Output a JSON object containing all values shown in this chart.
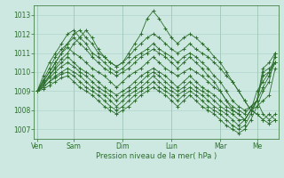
{
  "background_color": "#cce8e0",
  "grid_color": "#aacfc8",
  "line_color": "#2d6e2d",
  "xlabel": "Pression niveau de la mer( hPa )",
  "ylim": [
    1006.5,
    1013.5
  ],
  "yticks": [
    1007,
    1008,
    1009,
    1010,
    1011,
    1012,
    1013
  ],
  "day_labels": [
    "Ven",
    "Sam",
    "Dim",
    "Lun",
    "Mar",
    "Me"
  ],
  "day_positions": [
    0,
    6,
    14,
    22,
    30,
    36
  ],
  "num_points": 40,
  "series": [
    [
      1009.0,
      1009.3,
      1009.8,
      1010.3,
      1010.7,
      1011.0,
      1011.5,
      1011.8,
      1012.2,
      1011.8,
      1011.2,
      1010.8,
      1010.5,
      1010.3,
      1010.5,
      1011.0,
      1011.5,
      1012.0,
      1012.8,
      1013.2,
      1012.8,
      1012.3,
      1011.8,
      1011.5,
      1011.8,
      1012.0,
      1011.8,
      1011.5,
      1011.2,
      1010.8,
      1010.5,
      1010.0,
      1009.5,
      1009.0,
      1008.5,
      1008.0,
      1007.8,
      1007.5,
      1007.3,
      1007.5
    ],
    [
      1009.0,
      1009.5,
      1010.0,
      1010.5,
      1011.0,
      1011.5,
      1012.0,
      1012.2,
      1011.8,
      1011.5,
      1011.0,
      1010.8,
      1010.5,
      1010.3,
      1010.5,
      1010.8,
      1011.2,
      1011.5,
      1011.8,
      1012.0,
      1011.8,
      1011.5,
      1011.2,
      1011.0,
      1011.2,
      1011.5,
      1011.2,
      1011.0,
      1010.8,
      1010.5,
      1010.2,
      1009.8,
      1009.5,
      1009.0,
      1008.5,
      1008.0,
      1007.8,
      1007.5,
      1007.8,
      1007.5
    ],
    [
      1009.0,
      1009.8,
      1010.5,
      1011.0,
      1011.5,
      1012.0,
      1012.2,
      1011.8,
      1011.5,
      1011.0,
      1010.8,
      1010.5,
      1010.2,
      1010.0,
      1010.2,
      1010.5,
      1010.8,
      1011.0,
      1011.2,
      1011.5,
      1011.2,
      1011.0,
      1010.8,
      1010.5,
      1010.8,
      1011.0,
      1010.8,
      1010.5,
      1010.2,
      1009.8,
      1009.5,
      1009.0,
      1008.5,
      1008.2,
      1008.0,
      1008.2,
      1008.5,
      1007.8,
      1007.5,
      1007.8
    ],
    [
      1009.0,
      1009.6,
      1010.2,
      1010.8,
      1011.2,
      1011.5,
      1011.8,
      1011.5,
      1011.2,
      1010.8,
      1010.5,
      1010.2,
      1010.0,
      1009.8,
      1010.0,
      1010.2,
      1010.5,
      1010.8,
      1011.0,
      1011.2,
      1011.0,
      1010.8,
      1010.5,
      1010.2,
      1010.5,
      1010.8,
      1010.5,
      1010.2,
      1009.8,
      1009.5,
      1009.0,
      1008.5,
      1008.0,
      1007.8,
      1007.5,
      1008.0,
      1008.2,
      1008.5,
      1008.8,
      1010.2
    ],
    [
      1009.0,
      1009.5,
      1010.0,
      1010.5,
      1011.0,
      1011.3,
      1011.0,
      1010.8,
      1010.5,
      1010.2,
      1010.0,
      1009.8,
      1009.5,
      1009.2,
      1009.5,
      1009.8,
      1010.0,
      1010.2,
      1010.5,
      1010.8,
      1010.5,
      1010.2,
      1010.0,
      1009.8,
      1010.0,
      1010.2,
      1010.0,
      1009.8,
      1009.5,
      1009.2,
      1009.0,
      1008.5,
      1008.2,
      1008.0,
      1007.8,
      1008.2,
      1008.5,
      1010.0,
      1010.2,
      1010.5
    ],
    [
      1009.0,
      1009.4,
      1009.8,
      1010.2,
      1010.5,
      1010.8,
      1010.5,
      1010.2,
      1010.0,
      1009.8,
      1009.5,
      1009.2,
      1009.0,
      1008.8,
      1009.0,
      1009.2,
      1009.5,
      1009.8,
      1010.0,
      1010.2,
      1010.0,
      1009.8,
      1009.5,
      1009.2,
      1009.5,
      1009.8,
      1009.5,
      1009.2,
      1009.0,
      1008.8,
      1008.5,
      1008.2,
      1008.0,
      1007.8,
      1007.5,
      1008.0,
      1008.5,
      1010.2,
      1010.5,
      1011.0
    ],
    [
      1009.0,
      1009.3,
      1009.7,
      1010.0,
      1010.3,
      1010.5,
      1010.3,
      1010.0,
      1009.8,
      1009.5,
      1009.2,
      1009.0,
      1008.8,
      1008.5,
      1008.8,
      1009.0,
      1009.2,
      1009.5,
      1009.8,
      1010.0,
      1009.8,
      1009.5,
      1009.2,
      1009.0,
      1009.2,
      1009.5,
      1009.2,
      1009.0,
      1008.8,
      1008.5,
      1008.2,
      1008.0,
      1007.8,
      1007.5,
      1007.5,
      1008.0,
      1008.5,
      1009.8,
      1010.0,
      1010.5
    ],
    [
      1009.0,
      1009.2,
      1009.5,
      1009.8,
      1010.0,
      1010.2,
      1010.0,
      1009.8,
      1009.5,
      1009.2,
      1009.0,
      1008.8,
      1008.5,
      1008.2,
      1008.5,
      1008.8,
      1009.0,
      1009.2,
      1009.5,
      1009.8,
      1009.5,
      1009.2,
      1009.0,
      1008.8,
      1009.0,
      1009.2,
      1009.0,
      1008.8,
      1008.5,
      1008.2,
      1008.0,
      1007.8,
      1007.5,
      1007.2,
      1007.5,
      1008.0,
      1009.0,
      1009.5,
      1010.0,
      1010.8
    ],
    [
      1009.0,
      1009.2,
      1009.5,
      1009.7,
      1009.9,
      1010.0,
      1009.8,
      1009.5,
      1009.2,
      1009.0,
      1008.8,
      1008.5,
      1008.2,
      1008.0,
      1008.2,
      1008.5,
      1008.8,
      1009.0,
      1009.2,
      1009.5,
      1009.2,
      1009.0,
      1008.8,
      1008.5,
      1008.8,
      1009.0,
      1008.8,
      1008.5,
      1008.2,
      1008.0,
      1007.8,
      1007.5,
      1007.2,
      1007.0,
      1007.2,
      1007.8,
      1008.5,
      1009.2,
      1009.8,
      1010.5
    ],
    [
      1009.0,
      1009.1,
      1009.3,
      1009.5,
      1009.7,
      1009.8,
      1009.5,
      1009.2,
      1009.0,
      1008.8,
      1008.5,
      1008.2,
      1008.0,
      1007.8,
      1008.0,
      1008.2,
      1008.5,
      1008.8,
      1009.0,
      1009.2,
      1009.0,
      1008.8,
      1008.5,
      1008.2,
      1008.5,
      1008.8,
      1008.5,
      1008.2,
      1008.0,
      1007.8,
      1007.5,
      1007.2,
      1007.0,
      1006.8,
      1007.0,
      1007.5,
      1008.2,
      1009.0,
      1009.5,
      1011.0
    ]
  ]
}
